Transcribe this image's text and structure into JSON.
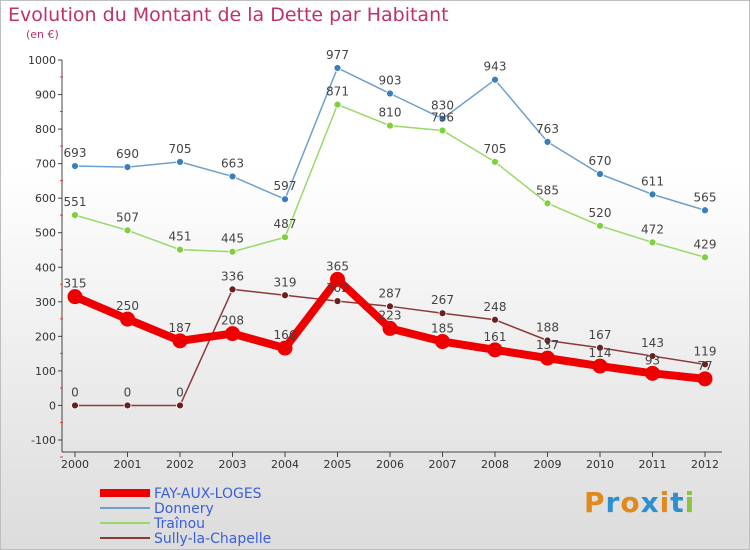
{
  "header": {
    "title": "Evolution du Montant de la Dette par Habitant",
    "unit": "(en €)"
  },
  "logo": {
    "text": "Proxiti",
    "letter_colors": [
      "#e08a1e",
      "#2f8fce",
      "#e08a1e",
      "#2f8fce",
      "#e08a1e",
      "#2f8fce",
      "#8ac43f"
    ]
  },
  "chart_data": {
    "type": "line",
    "title": "Evolution du Montant de la Dette par Habitant",
    "subtitle": "(en €)",
    "xlabel": "",
    "ylabel": "",
    "x": [
      "2000",
      "2001",
      "2002",
      "2003",
      "2004",
      "2005",
      "2006",
      "2007",
      "2008",
      "2009",
      "2010",
      "2011",
      "2012"
    ],
    "ylim": [
      -100,
      1000
    ],
    "yticks": [
      -100,
      0,
      100,
      200,
      300,
      400,
      500,
      600,
      700,
      800,
      900,
      1000
    ],
    "grid": false,
    "legend_position": "bottom-left",
    "series": [
      {
        "name": "FAY-AUX-LOGES",
        "color": "#ee0000",
        "values": [
          315,
          250,
          187,
          208,
          166,
          365,
          223,
          185,
          161,
          137,
          114,
          93,
          77
        ],
        "labels": [
          "315",
          "250",
          "187",
          "208",
          "166",
          "365",
          "223",
          "185",
          "161",
          "137",
          "114",
          "93",
          "77"
        ]
      },
      {
        "name": "Donnery",
        "color": "#6ea0cc",
        "values": [
          693,
          690,
          705,
          663,
          597,
          977,
          903,
          830,
          943,
          763,
          670,
          611,
          565
        ],
        "labels": [
          "693",
          "690",
          "705",
          "663",
          "597",
          "977",
          "903",
          "830",
          "943",
          "763",
          "670",
          "611",
          "565"
        ]
      },
      {
        "name": "Traînou",
        "color": "#9ad86a",
        "values": [
          551,
          507,
          451,
          445,
          487,
          871,
          810,
          796,
          705,
          585,
          520,
          472,
          429
        ],
        "labels": [
          "551",
          "507",
          "451",
          "445",
          "487",
          "871",
          "810",
          "796",
          "705",
          "585",
          "520",
          "472",
          "429"
        ]
      },
      {
        "name": "Sully-la-Chapelle",
        "color": "#8b3a3a",
        "values": [
          0,
          0,
          0,
          336,
          319,
          302,
          287,
          267,
          248,
          188,
          167,
          143,
          119
        ],
        "labels": [
          "0",
          "0",
          "0",
          "336",
          "319",
          "302",
          "287",
          "267",
          "248",
          "188",
          "167",
          "143",
          "119"
        ]
      }
    ]
  }
}
